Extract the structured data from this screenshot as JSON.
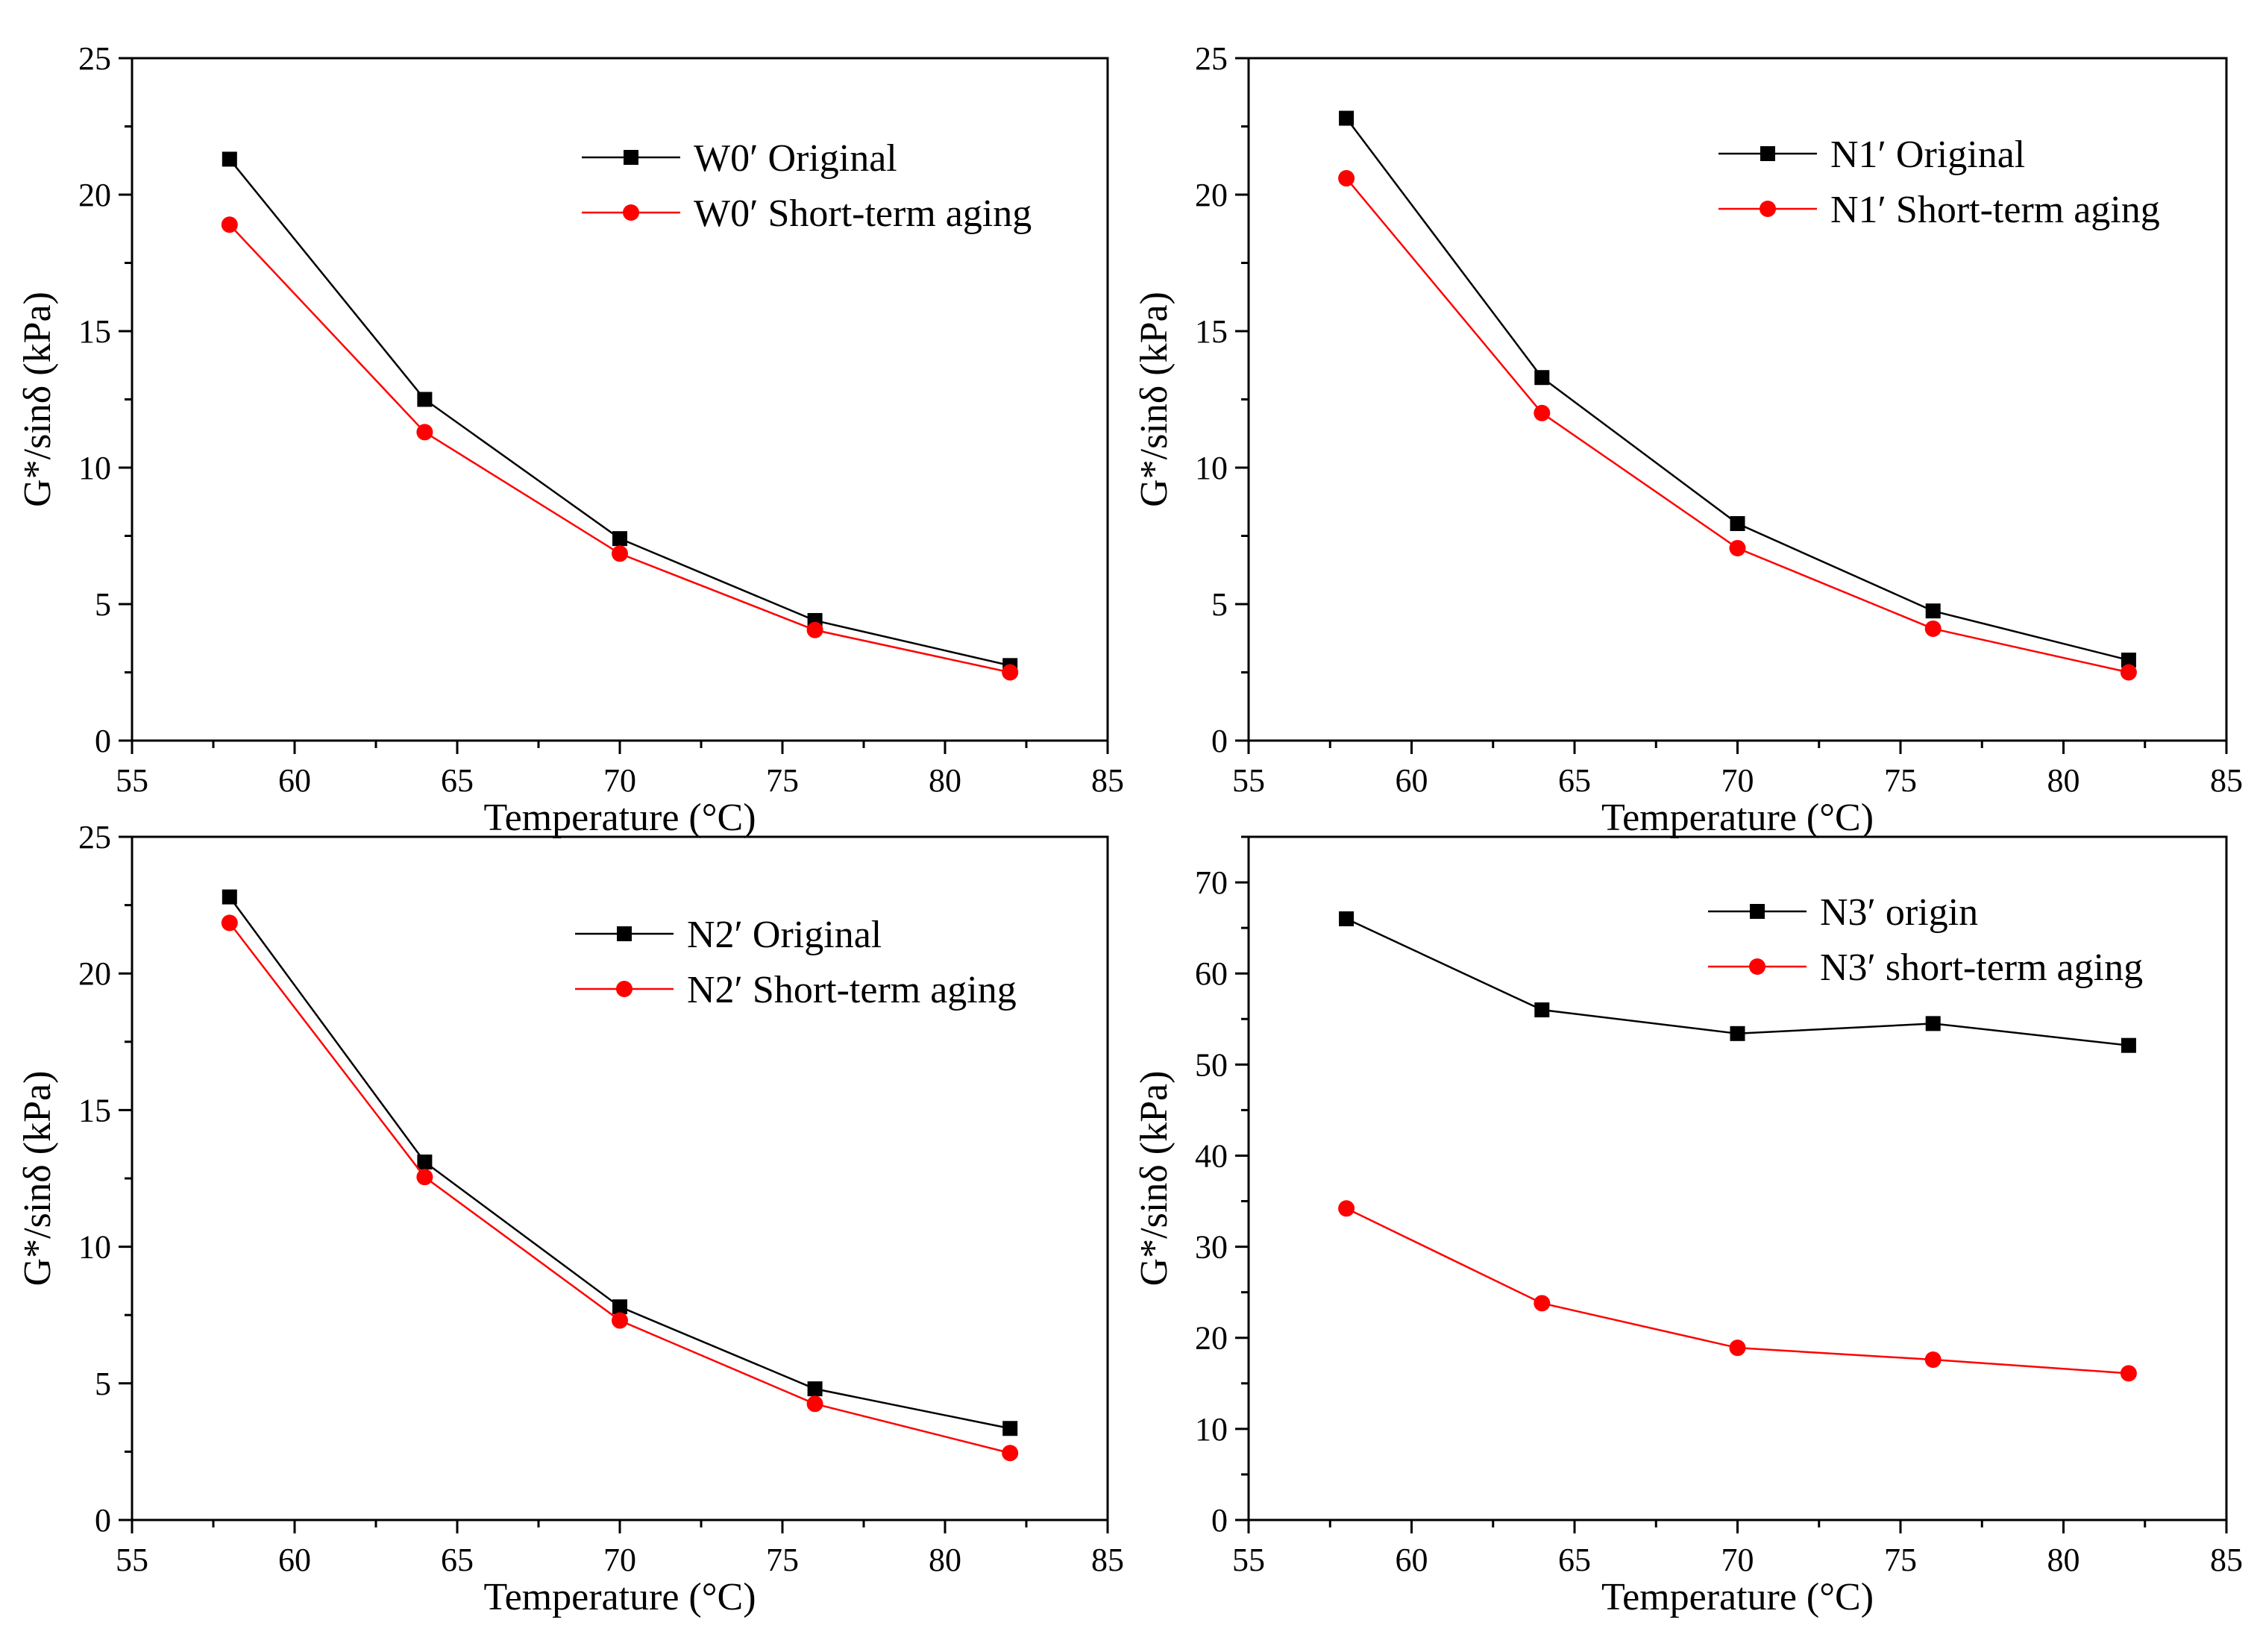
{
  "chart_data": [
    {
      "type": "line",
      "x": [
        58,
        64,
        70,
        76,
        82
      ],
      "xlabel": "Temperature (°C)",
      "ylabel": "G*/sinδ (kPa)",
      "xlim": [
        55,
        85
      ],
      "ylim": [
        0,
        25
      ],
      "xticks": [
        55,
        60,
        65,
        70,
        75,
        80,
        85
      ],
      "yticks": [
        0,
        5,
        10,
        15,
        20,
        25
      ],
      "legend_position": "top-right",
      "series": [
        {
          "name": "W0′ Original",
          "color": "#000000",
          "marker": "square",
          "values": [
            21.3,
            12.5,
            7.4,
            4.4,
            2.75
          ]
        },
        {
          "name": "W0′ Short-term aging",
          "color": "#ff0000",
          "marker": "circle",
          "values": [
            18.9,
            11.3,
            6.85,
            4.05,
            2.5
          ]
        }
      ]
    },
    {
      "type": "line",
      "x": [
        58,
        64,
        70,
        76,
        82
      ],
      "xlabel": "Temperature (°C)",
      "ylabel": "G*/sinδ (kPa)",
      "xlim": [
        55,
        85
      ],
      "ylim": [
        0,
        25
      ],
      "xticks": [
        55,
        60,
        65,
        70,
        75,
        80,
        85
      ],
      "yticks": [
        0,
        5,
        10,
        15,
        20,
        25
      ],
      "legend_position": "top-right",
      "series": [
        {
          "name": "N1′ Original",
          "color": "#000000",
          "marker": "square",
          "values": [
            22.8,
            13.3,
            7.95,
            4.75,
            2.95
          ]
        },
        {
          "name": "N1′ Short-term aging",
          "color": "#ff0000",
          "marker": "circle",
          "values": [
            20.6,
            12.0,
            7.05,
            4.1,
            2.5
          ]
        }
      ]
    },
    {
      "type": "line",
      "x": [
        58,
        64,
        70,
        76,
        82
      ],
      "xlabel": "Temperature (°C)",
      "ylabel": "G*/sinδ (kPa)",
      "xlim": [
        55,
        85
      ],
      "ylim": [
        0,
        25
      ],
      "xticks": [
        55,
        60,
        65,
        70,
        75,
        80,
        85
      ],
      "yticks": [
        0,
        5,
        10,
        15,
        20,
        25
      ],
      "legend_position": "top-right",
      "series": [
        {
          "name": "N2′ Original",
          "color": "#000000",
          "marker": "square",
          "values": [
            22.8,
            13.1,
            7.8,
            4.8,
            3.35
          ]
        },
        {
          "name": "N2′ Short-term aging",
          "color": "#ff0000",
          "marker": "circle",
          "values": [
            21.85,
            12.55,
            7.3,
            4.25,
            2.45
          ]
        }
      ]
    },
    {
      "type": "line",
      "x": [
        58,
        64,
        70,
        76,
        82
      ],
      "xlabel": "Temperature (°C)",
      "ylabel": "G*/sinδ (kPa)",
      "xlim": [
        55,
        85
      ],
      "ylim": [
        0,
        75
      ],
      "xticks": [
        55,
        60,
        65,
        70,
        75,
        80,
        85
      ],
      "yticks": [
        0,
        10,
        20,
        30,
        40,
        50,
        60,
        70
      ],
      "legend_position": "top-right",
      "series": [
        {
          "name": "N3′ origin",
          "color": "#000000",
          "marker": "square",
          "values": [
            66.0,
            56.0,
            53.4,
            54.5,
            52.1
          ]
        },
        {
          "name": "N3′ short-term aging",
          "color": "#ff0000",
          "marker": "circle",
          "values": [
            34.2,
            23.8,
            18.9,
            17.6,
            16.1
          ]
        }
      ]
    }
  ]
}
